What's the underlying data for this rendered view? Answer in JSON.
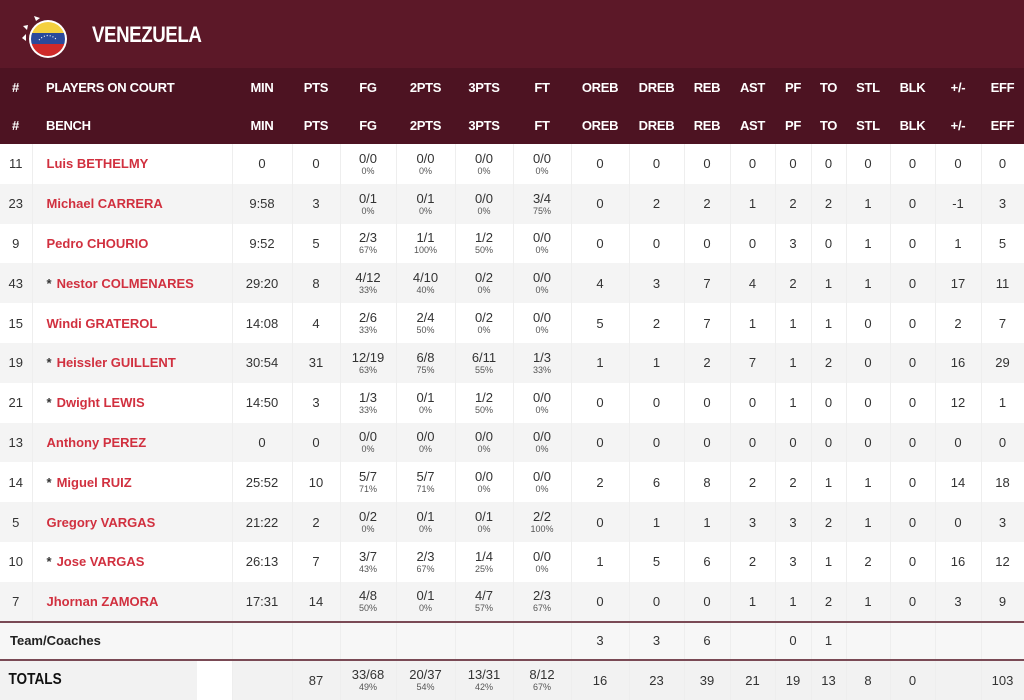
{
  "team": {
    "name": "Venezuela",
    "flag_colors": [
      "#f4d03f",
      "#2b4a9b",
      "#cf2a2a"
    ]
  },
  "headers": {
    "on_court": [
      "#",
      "PLAYERS ON COURT",
      "MIN",
      "PTS",
      "FG",
      "2PTS",
      "3PTS",
      "FT",
      "OREB",
      "DREB",
      "REB",
      "AST",
      "PF",
      "TO",
      "STL",
      "BLK",
      "+/-",
      "EFF"
    ],
    "bench": [
      "#",
      "BENCH",
      "MIN",
      "PTS",
      "FG",
      "2PTS",
      "3PTS",
      "FT",
      "OREB",
      "DREB",
      "REB",
      "AST",
      "PF",
      "TO",
      "STL",
      "BLK",
      "+/-",
      "EFF"
    ]
  },
  "players": [
    {
      "num": "11",
      "name": "Luis BETHELMY",
      "starter": false,
      "min": "0",
      "pts": "0",
      "fg": [
        "0/0",
        "0%"
      ],
      "p2": [
        "0/0",
        "0%"
      ],
      "p3": [
        "0/0",
        "0%"
      ],
      "ft": [
        "0/0",
        "0%"
      ],
      "oreb": "0",
      "dreb": "0",
      "reb": "0",
      "ast": "0",
      "pf": "0",
      "to": "0",
      "stl": "0",
      "blk": "0",
      "pm": "0",
      "eff": "0"
    },
    {
      "num": "23",
      "name": "Michael CARRERA",
      "starter": false,
      "min": "9:58",
      "pts": "3",
      "fg": [
        "0/1",
        "0%"
      ],
      "p2": [
        "0/1",
        "0%"
      ],
      "p3": [
        "0/0",
        "0%"
      ],
      "ft": [
        "3/4",
        "75%"
      ],
      "oreb": "0",
      "dreb": "2",
      "reb": "2",
      "ast": "1",
      "pf": "2",
      "to": "2",
      "stl": "1",
      "blk": "0",
      "pm": "-1",
      "eff": "3"
    },
    {
      "num": "9",
      "name": "Pedro CHOURIO",
      "starter": false,
      "min": "9:52",
      "pts": "5",
      "fg": [
        "2/3",
        "67%"
      ],
      "p2": [
        "1/1",
        "100%"
      ],
      "p3": [
        "1/2",
        "50%"
      ],
      "ft": [
        "0/0",
        "0%"
      ],
      "oreb": "0",
      "dreb": "0",
      "reb": "0",
      "ast": "0",
      "pf": "3",
      "to": "0",
      "stl": "1",
      "blk": "0",
      "pm": "1",
      "eff": "5"
    },
    {
      "num": "43",
      "name": "Nestor COLMENARES",
      "starter": true,
      "min": "29:20",
      "pts": "8",
      "fg": [
        "4/12",
        "33%"
      ],
      "p2": [
        "4/10",
        "40%"
      ],
      "p3": [
        "0/2",
        "0%"
      ],
      "ft": [
        "0/0",
        "0%"
      ],
      "oreb": "4",
      "dreb": "3",
      "reb": "7",
      "ast": "4",
      "pf": "2",
      "to": "1",
      "stl": "1",
      "blk": "0",
      "pm": "17",
      "eff": "11"
    },
    {
      "num": "15",
      "name": "Windi GRATEROL",
      "starter": false,
      "min": "14:08",
      "pts": "4",
      "fg": [
        "2/6",
        "33%"
      ],
      "p2": [
        "2/4",
        "50%"
      ],
      "p3": [
        "0/2",
        "0%"
      ],
      "ft": [
        "0/0",
        "0%"
      ],
      "oreb": "5",
      "dreb": "2",
      "reb": "7",
      "ast": "1",
      "pf": "1",
      "to": "1",
      "stl": "0",
      "blk": "0",
      "pm": "2",
      "eff": "7"
    },
    {
      "num": "19",
      "name": "Heissler GUILLENT",
      "starter": true,
      "min": "30:54",
      "pts": "31",
      "fg": [
        "12/19",
        "63%"
      ],
      "p2": [
        "6/8",
        "75%"
      ],
      "p3": [
        "6/11",
        "55%"
      ],
      "ft": [
        "1/3",
        "33%"
      ],
      "oreb": "1",
      "dreb": "1",
      "reb": "2",
      "ast": "7",
      "pf": "1",
      "to": "2",
      "stl": "0",
      "blk": "0",
      "pm": "16",
      "eff": "29"
    },
    {
      "num": "21",
      "name": "Dwight LEWIS",
      "starter": true,
      "min": "14:50",
      "pts": "3",
      "fg": [
        "1/3",
        "33%"
      ],
      "p2": [
        "0/1",
        "0%"
      ],
      "p3": [
        "1/2",
        "50%"
      ],
      "ft": [
        "0/0",
        "0%"
      ],
      "oreb": "0",
      "dreb": "0",
      "reb": "0",
      "ast": "0",
      "pf": "1",
      "to": "0",
      "stl": "0",
      "blk": "0",
      "pm": "12",
      "eff": "1"
    },
    {
      "num": "13",
      "name": "Anthony PEREZ",
      "starter": false,
      "min": "0",
      "pts": "0",
      "fg": [
        "0/0",
        "0%"
      ],
      "p2": [
        "0/0",
        "0%"
      ],
      "p3": [
        "0/0",
        "0%"
      ],
      "ft": [
        "0/0",
        "0%"
      ],
      "oreb": "0",
      "dreb": "0",
      "reb": "0",
      "ast": "0",
      "pf": "0",
      "to": "0",
      "stl": "0",
      "blk": "0",
      "pm": "0",
      "eff": "0"
    },
    {
      "num": "14",
      "name": "Miguel RUIZ",
      "starter": true,
      "min": "25:52",
      "pts": "10",
      "fg": [
        "5/7",
        "71%"
      ],
      "p2": [
        "5/7",
        "71%"
      ],
      "p3": [
        "0/0",
        "0%"
      ],
      "ft": [
        "0/0",
        "0%"
      ],
      "oreb": "2",
      "dreb": "6",
      "reb": "8",
      "ast": "2",
      "pf": "2",
      "to": "1",
      "stl": "1",
      "blk": "0",
      "pm": "14",
      "eff": "18"
    },
    {
      "num": "5",
      "name": "Gregory VARGAS",
      "starter": false,
      "min": "21:22",
      "pts": "2",
      "fg": [
        "0/2",
        "0%"
      ],
      "p2": [
        "0/1",
        "0%"
      ],
      "p3": [
        "0/1",
        "0%"
      ],
      "ft": [
        "2/2",
        "100%"
      ],
      "oreb": "0",
      "dreb": "1",
      "reb": "1",
      "ast": "3",
      "pf": "3",
      "to": "2",
      "stl": "1",
      "blk": "0",
      "pm": "0",
      "eff": "3"
    },
    {
      "num": "10",
      "name": "Jose VARGAS",
      "starter": true,
      "min": "26:13",
      "pts": "7",
      "fg": [
        "3/7",
        "43%"
      ],
      "p2": [
        "2/3",
        "67%"
      ],
      "p3": [
        "1/4",
        "25%"
      ],
      "ft": [
        "0/0",
        "0%"
      ],
      "oreb": "1",
      "dreb": "5",
      "reb": "6",
      "ast": "2",
      "pf": "3",
      "to": "1",
      "stl": "2",
      "blk": "0",
      "pm": "16",
      "eff": "12"
    },
    {
      "num": "7",
      "name": "Jhornan ZAMORA",
      "starter": false,
      "min": "17:31",
      "pts": "14",
      "fg": [
        "4/8",
        "50%"
      ],
      "p2": [
        "0/1",
        "0%"
      ],
      "p3": [
        "4/7",
        "57%"
      ],
      "ft": [
        "2/3",
        "67%"
      ],
      "oreb": "0",
      "dreb": "0",
      "reb": "0",
      "ast": "1",
      "pf": "1",
      "to": "2",
      "stl": "1",
      "blk": "0",
      "pm": "3",
      "eff": "9"
    }
  ],
  "team_coaches": {
    "label": "Team/Coaches",
    "oreb": "3",
    "dreb": "3",
    "reb": "6",
    "pf": "0",
    "to": "1"
  },
  "totals": {
    "label": "TOTALS",
    "pts": "87",
    "fg": [
      "33/68",
      "49%"
    ],
    "p2": [
      "20/37",
      "54%"
    ],
    "p3": [
      "13/31",
      "42%"
    ],
    "ft": [
      "8/12",
      "67%"
    ],
    "oreb": "16",
    "dreb": "23",
    "reb": "39",
    "ast": "21",
    "pf": "19",
    "to": "13",
    "stl": "8",
    "blk": "0",
    "eff": "103"
  },
  "starter_mark": "*"
}
